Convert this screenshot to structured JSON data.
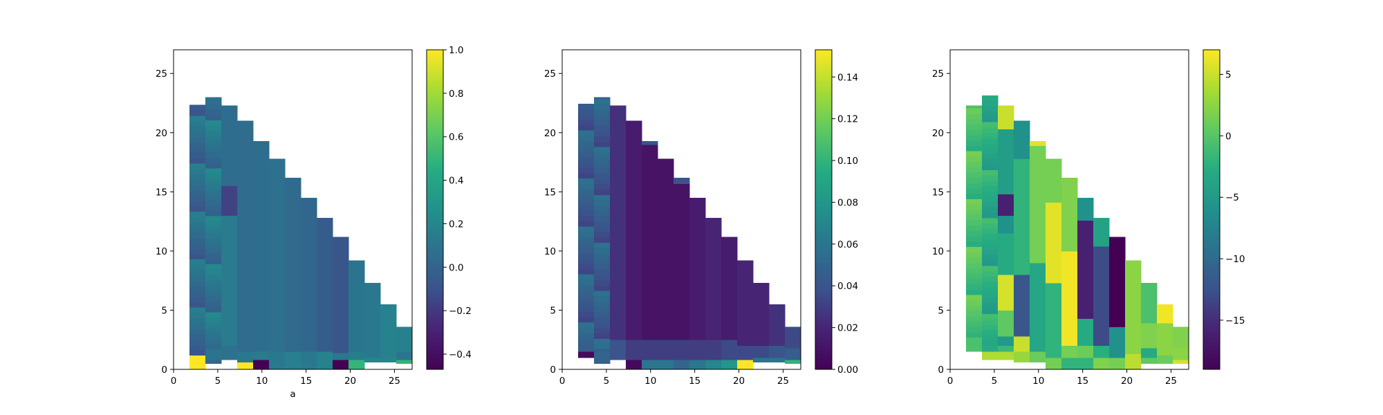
{
  "chart_data": [
    {
      "type": "heatmap",
      "title": "",
      "xlabel": "a",
      "ylabel": "",
      "xlim": [
        0,
        27
      ],
      "ylim": [
        0,
        27
      ],
      "xticks": [
        0,
        5,
        10,
        15,
        20,
        25
      ],
      "yticks": [
        0,
        5,
        10,
        15,
        20,
        25
      ],
      "colormap": "viridis",
      "colorbar": {
        "min": -0.47,
        "max": 1.0,
        "ticks": [
          -0.4,
          -0.2,
          0.0,
          0.2,
          0.4,
          0.6,
          0.8,
          1.0
        ],
        "tick_labels": [
          "−0.4",
          "−0.2",
          "0.0",
          "0.2",
          "0.4",
          "0.6",
          "0.8",
          "1.0"
        ]
      },
      "columns": [
        {
          "x": [
            1.8,
            3.6
          ],
          "top": 22.3,
          "base": 0.0,
          "bands": [
            [
              1.4,
              1.0
            ],
            [
              22.3,
              0.04
            ]
          ]
        },
        {
          "x": [
            3.6,
            5.4
          ],
          "top": 23.0,
          "base": 0.5,
          "bands": [
            [
              0.8,
              0.02
            ],
            [
              23.0,
              0.1
            ]
          ]
        },
        {
          "x": [
            5.4,
            7.2
          ],
          "top": 22.3,
          "base": 0.8,
          "bands": [
            [
              2.0,
              0.08
            ],
            [
              13.0,
              0.14
            ],
            [
              15.5,
              -0.16
            ],
            [
              22.3,
              0.06
            ]
          ]
        },
        {
          "x": [
            7.2,
            9.0
          ],
          "top": 21.0,
          "base": 0.0,
          "bands": [
            [
              0.6,
              1.0
            ],
            [
              1.5,
              0.12
            ],
            [
              21.0,
              0.05
            ]
          ]
        },
        {
          "x": [
            9.0,
            10.8
          ],
          "top": 19.3,
          "base": 0.0,
          "bands": [
            [
              0.8,
              -0.47
            ],
            [
              1.5,
              0.14
            ],
            [
              19.3,
              0.06
            ]
          ]
        },
        {
          "x": [
            10.8,
            12.6
          ],
          "top": 17.8,
          "base": 0.0,
          "bands": [
            [
              1.5,
              0.12
            ],
            [
              17.8,
              0.08
            ]
          ]
        },
        {
          "x": [
            12.6,
            14.4
          ],
          "top": 16.2,
          "base": 0.0,
          "bands": [
            [
              1.5,
              0.16
            ],
            [
              16.2,
              0.04
            ]
          ]
        },
        {
          "x": [
            14.4,
            16.2
          ],
          "top": 14.5,
          "base": 0.0,
          "bands": [
            [
              1.5,
              0.12
            ],
            [
              14.5,
              0.02
            ]
          ]
        },
        {
          "x": [
            16.2,
            18.0
          ],
          "top": 12.8,
          "base": 0.0,
          "bands": [
            [
              1.5,
              0.18
            ],
            [
              12.8,
              -0.04
            ]
          ]
        },
        {
          "x": [
            18.0,
            19.8
          ],
          "top": 11.2,
          "base": 0.0,
          "bands": [
            [
              0.8,
              -0.47
            ],
            [
              1.4,
              0.12
            ],
            [
              11.2,
              -0.08
            ]
          ]
        },
        {
          "x": [
            19.8,
            21.6
          ],
          "top": 9.2,
          "base": 0.0,
          "bands": [
            [
              0.8,
              0.5
            ],
            [
              1.5,
              0.15
            ],
            [
              9.2,
              0.1
            ]
          ]
        },
        {
          "x": [
            21.6,
            23.4
          ],
          "top": 7.3,
          "base": 0.6,
          "bands": [
            [
              1.0,
              0.2
            ],
            [
              7.3,
              0.12
            ]
          ]
        },
        {
          "x": [
            23.4,
            25.2
          ],
          "top": 5.5,
          "base": 0.6,
          "bands": [
            [
              1.0,
              0.2
            ],
            [
              5.5,
              0.18
            ]
          ]
        },
        {
          "x": [
            25.2,
            27.0
          ],
          "top": 3.6,
          "base": 0.5,
          "bands": [
            [
              0.8,
              0.5
            ],
            [
              1.5,
              0.1
            ],
            [
              3.6,
              0.17
            ]
          ]
        }
      ],
      "first_column_stripes": true
    },
    {
      "type": "heatmap",
      "title": "",
      "xlabel": "",
      "ylabel": "",
      "xlim": [
        0,
        27
      ],
      "ylim": [
        0,
        27
      ],
      "xticks": [
        0,
        5,
        10,
        15,
        20,
        25
      ],
      "yticks": [
        0,
        5,
        10,
        15,
        20,
        25
      ],
      "colormap": "viridis",
      "colorbar": {
        "min": 0.0,
        "max": 0.153,
        "ticks": [
          0.0,
          0.02,
          0.04,
          0.06,
          0.08,
          0.1,
          0.12,
          0.14
        ],
        "tick_labels": [
          "0.00",
          "0.02",
          "0.04",
          "0.06",
          "0.08",
          "0.10",
          "0.12",
          "0.14"
        ]
      },
      "columns": [
        {
          "x": [
            1.8,
            3.6
          ],
          "top": 22.3,
          "base": 1.0,
          "bands": [
            [
              1.5,
              0.005
            ],
            [
              22.3,
              0.045
            ]
          ]
        },
        {
          "x": [
            3.6,
            5.4
          ],
          "top": 23.0,
          "base": 0.5,
          "bands": [
            [
              1.5,
              0.05
            ],
            [
              23.0,
              0.045
            ]
          ]
        },
        {
          "x": [
            5.4,
            7.2
          ],
          "top": 22.3,
          "base": 0.8,
          "bands": [
            [
              2.5,
              0.04
            ],
            [
              22.3,
              0.025
            ]
          ]
        },
        {
          "x": [
            7.2,
            9.0
          ],
          "top": 21.0,
          "base": 0.0,
          "bands": [
            [
              0.8,
              0.005
            ],
            [
              2.5,
              0.03
            ],
            [
              21.0,
              0.015
            ]
          ]
        },
        {
          "x": [
            9.0,
            10.8
          ],
          "top": 19.3,
          "base": 0.0,
          "bands": [
            [
              0.8,
              0.06
            ],
            [
              2.5,
              0.03
            ],
            [
              19.0,
              0.01
            ],
            [
              19.3,
              0.04
            ]
          ]
        },
        {
          "x": [
            10.8,
            12.6
          ],
          "top": 17.8,
          "base": 0.0,
          "bands": [
            [
              0.8,
              0.06
            ],
            [
              2.5,
              0.03
            ],
            [
              17.8,
              0.01
            ]
          ]
        },
        {
          "x": [
            12.6,
            14.4
          ],
          "top": 16.2,
          "base": 0.0,
          "bands": [
            [
              0.8,
              0.05
            ],
            [
              2.5,
              0.03
            ],
            [
              15.7,
              0.01
            ],
            [
              16.2,
              0.04
            ]
          ]
        },
        {
          "x": [
            14.4,
            16.2
          ],
          "top": 14.5,
          "base": 0.0,
          "bands": [
            [
              0.8,
              0.06
            ],
            [
              2.5,
              0.03
            ],
            [
              14.5,
              0.015
            ]
          ]
        },
        {
          "x": [
            16.2,
            18.0
          ],
          "top": 12.8,
          "base": 0.0,
          "bands": [
            [
              0.8,
              0.07
            ],
            [
              2.5,
              0.03
            ],
            [
              12.8,
              0.02
            ]
          ]
        },
        {
          "x": [
            18.0,
            19.8
          ],
          "top": 11.2,
          "base": 0.0,
          "bands": [
            [
              0.8,
              0.08
            ],
            [
              2.5,
              0.035
            ],
            [
              11.2,
              0.015
            ]
          ]
        },
        {
          "x": [
            19.8,
            21.6
          ],
          "top": 9.2,
          "base": 0.0,
          "bands": [
            [
              0.8,
              0.153
            ],
            [
              2.0,
              0.035
            ],
            [
              9.2,
              0.02
            ]
          ]
        },
        {
          "x": [
            21.6,
            23.4
          ],
          "top": 7.3,
          "base": 0.6,
          "bands": [
            [
              1.0,
              0.06
            ],
            [
              2.0,
              0.035
            ],
            [
              7.3,
              0.02
            ]
          ]
        },
        {
          "x": [
            23.4,
            25.2
          ],
          "top": 5.5,
          "base": 0.6,
          "bands": [
            [
              1.0,
              0.06
            ],
            [
              2.0,
              0.04
            ],
            [
              5.5,
              0.025
            ]
          ]
        },
        {
          "x": [
            25.2,
            27.0
          ],
          "top": 3.6,
          "base": 0.5,
          "bands": [
            [
              0.8,
              0.1
            ],
            [
              1.8,
              0.045
            ],
            [
              3.6,
              0.035
            ]
          ]
        }
      ],
      "first_column_stripes": true
    },
    {
      "type": "heatmap",
      "title": "",
      "xlabel": "",
      "ylabel": "",
      "xlim": [
        0,
        27
      ],
      "ylim": [
        0,
        27
      ],
      "xticks": [
        0,
        5,
        10,
        15,
        20,
        25
      ],
      "yticks": [
        0,
        5,
        10,
        15,
        20,
        25
      ],
      "colormap": "viridis",
      "colorbar": {
        "min": -19,
        "max": 7,
        "ticks": [
          -15,
          -10,
          -5,
          0,
          5
        ],
        "tick_labels": [
          "−15",
          "−10",
          "−5",
          "0",
          "5"
        ]
      },
      "columns": [
        {
          "x": [
            1.8,
            3.6
          ],
          "top": 22.3,
          "base": 1.5,
          "bands": [
            [
              22.3,
              -0.5
            ]
          ]
        },
        {
          "x": [
            3.6,
            5.4
          ],
          "top": 23.0,
          "base": 0.8,
          "bands": [
            [
              1.5,
              4.0
            ],
            [
              23.0,
              -3.0
            ]
          ]
        },
        {
          "x": [
            5.4,
            7.2
          ],
          "top": 22.3,
          "base": 0.8,
          "bands": [
            [
              1.5,
              4.0
            ],
            [
              2.0,
              -1.5
            ],
            [
              2.8,
              -5.0
            ],
            [
              5.0,
              0.5
            ],
            [
              8.0,
              5.5
            ],
            [
              11.5,
              -3.0
            ],
            [
              13.0,
              -6.0
            ],
            [
              14.8,
              -16.0
            ],
            [
              20.3,
              -4.5
            ],
            [
              22.3,
              5.0
            ]
          ]
        },
        {
          "x": [
            7.2,
            9.0
          ],
          "top": 21.0,
          "base": 0.6,
          "bands": [
            [
              1.5,
              3.0
            ],
            [
              2.8,
              5.0
            ],
            [
              8.0,
              -12.0
            ],
            [
              17.8,
              -2.0
            ],
            [
              21.0,
              -6.0
            ]
          ]
        },
        {
          "x": [
            9.0,
            10.8
          ],
          "top": 19.3,
          "base": 0.6,
          "bands": [
            [
              1.5,
              1.0
            ],
            [
              9.0,
              -3.5
            ],
            [
              18.9,
              1.5
            ],
            [
              19.3,
              6.0
            ]
          ]
        },
        {
          "x": [
            10.8,
            12.6
          ],
          "top": 17.8,
          "base": 0.0,
          "bands": [
            [
              1.0,
              1.5
            ],
            [
              7.3,
              -2.0
            ],
            [
              14.1,
              6.0
            ],
            [
              17.8,
              1.5
            ]
          ]
        },
        {
          "x": [
            12.6,
            14.4
          ],
          "top": 16.2,
          "base": 0.0,
          "bands": [
            [
              1.0,
              -2.0
            ],
            [
              2.0,
              1.5
            ],
            [
              10.0,
              6.5
            ],
            [
              16.2,
              2.0
            ]
          ]
        },
        {
          "x": [
            14.4,
            16.2
          ],
          "top": 14.5,
          "base": 0.0,
          "bands": [
            [
              1.0,
              -2.0
            ],
            [
              2.0,
              1.0
            ],
            [
              4.3,
              -3.0
            ],
            [
              12.6,
              -16.0
            ],
            [
              14.5,
              -6.0
            ]
          ]
        },
        {
          "x": [
            16.2,
            18.0
          ],
          "top": 12.8,
          "base": 0.0,
          "bands": [
            [
              1.0,
              2.0
            ],
            [
              2.0,
              -2.5
            ],
            [
              10.4,
              -13.0
            ],
            [
              12.8,
              -4.0
            ]
          ]
        },
        {
          "x": [
            18.0,
            19.8
          ],
          "top": 11.2,
          "base": 0.0,
          "bands": [
            [
              1.0,
              1.5
            ],
            [
              3.6,
              -6.0
            ],
            [
              11.2,
              -19.0
            ]
          ]
        },
        {
          "x": [
            19.8,
            21.6
          ],
          "top": 9.2,
          "base": 0.0,
          "bands": [
            [
              1.3,
              4.5
            ],
            [
              9.2,
              2.5
            ]
          ]
        },
        {
          "x": [
            21.6,
            23.4
          ],
          "top": 7.3,
          "base": 0.5,
          "bands": [
            [
              1.0,
              0.5
            ],
            [
              1.8,
              -3.0
            ],
            [
              3.9,
              2.0
            ],
            [
              7.3,
              -0.5
            ]
          ]
        },
        {
          "x": [
            23.4,
            25.2
          ],
          "top": 5.5,
          "base": 0.5,
          "bands": [
            [
              1.2,
              1.0
            ],
            [
              3.9,
              2.5
            ],
            [
              5.5,
              6.5
            ]
          ]
        },
        {
          "x": [
            25.2,
            27.0
          ],
          "top": 3.6,
          "base": 0.5,
          "bands": [
            [
              0.8,
              5.5
            ],
            [
              1.8,
              2.5
            ],
            [
              3.6,
              2.0
            ]
          ]
        }
      ],
      "first_column_stripes": true
    }
  ]
}
